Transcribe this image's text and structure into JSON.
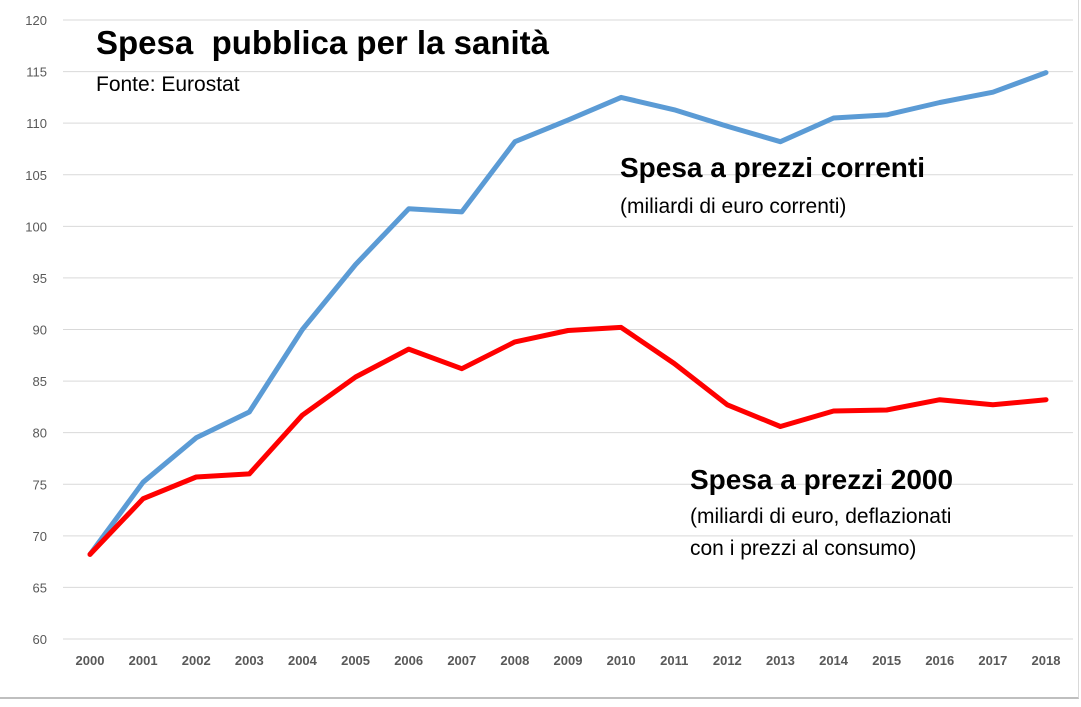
{
  "chart_data": {
    "type": "line",
    "title": "Spesa  pubblica per la sanità",
    "subtitle": "Fonte: Eurostat",
    "categories": [
      "2000",
      "2001",
      "2002",
      "2003",
      "2004",
      "2005",
      "2006",
      "2007",
      "2008",
      "2009",
      "2010",
      "2011",
      "2012",
      "2013",
      "2014",
      "2015",
      "2016",
      "2017",
      "2018"
    ],
    "ylim": [
      60,
      120
    ],
    "yticks": [
      60,
      65,
      70,
      75,
      80,
      85,
      90,
      95,
      100,
      105,
      110,
      115,
      120
    ],
    "grid": true,
    "legend": "none",
    "series": [
      {
        "name": "Spesa a prezzi correnti",
        "color": "#5b9bd5",
        "values": [
          68.2,
          75.2,
          79.5,
          82.0,
          90.0,
          96.3,
          101.7,
          101.4,
          108.2,
          110.3,
          112.5,
          111.3,
          109.7,
          108.2,
          110.5,
          110.8,
          112.0,
          113.0,
          114.9
        ]
      },
      {
        "name": "Spesa a prezzi 2000",
        "color": "#ff0000",
        "values": [
          68.2,
          73.6,
          75.7,
          76.0,
          81.7,
          85.4,
          88.1,
          86.2,
          88.8,
          89.9,
          90.2,
          86.7,
          82.7,
          80.6,
          82.1,
          82.2,
          83.2,
          82.7,
          83.2
        ]
      }
    ],
    "annotations": {
      "correnti_head": "Spesa a prezzi correnti",
      "correnti_sub": "(miliardi di euro correnti)",
      "prezzi2000_head": "Spesa a prezzi 2000",
      "prezzi2000_sub1": "(miliardi di euro, deflazionati",
      "prezzi2000_sub2": "con i prezzi al consumo)"
    }
  }
}
